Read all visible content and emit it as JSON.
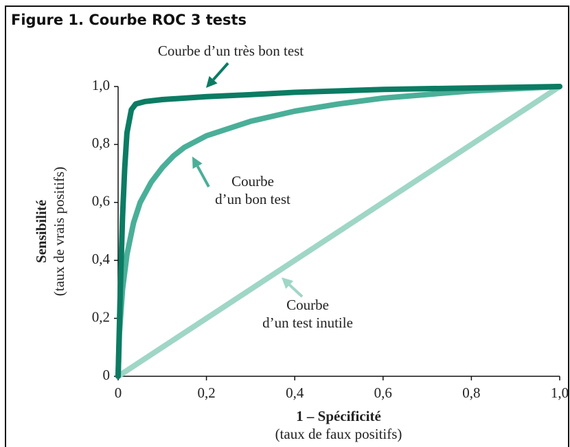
{
  "chart_data": {
    "type": "line",
    "title": "Figure 1.  Courbe ROC 3 tests",
    "xlabel": [
      "1 – Spécificité",
      "(taux de faux positifs)"
    ],
    "ylabel": [
      "Sensibilité",
      "(taux de vrais positifs)"
    ],
    "xlim": [
      0,
      1
    ],
    "ylim": [
      0,
      1
    ],
    "xticks": [
      0,
      {
        "value": 0.2,
        "label": "0,2"
      },
      {
        "value": 0.4,
        "label": "0,4"
      },
      {
        "value": 0.6,
        "label": "0,6"
      },
      {
        "value": 0.8,
        "label": "0,8"
      },
      {
        "value": 1,
        "label": "1,0"
      }
    ],
    "yticks": [
      0,
      {
        "value": 0.2,
        "label": "0,2"
      },
      {
        "value": 0.4,
        "label": "0,4"
      },
      {
        "value": 0.6,
        "label": "0,6"
      },
      {
        "value": 0.8,
        "label": "0,8"
      },
      {
        "value": 1,
        "label": "1,0"
      }
    ],
    "series": [
      {
        "color": "#0b7c63",
        "x": [
          0,
          0.005,
          0.01,
          0.015,
          0.02,
          0.03,
          0.04,
          0.06,
          0.1,
          0.2,
          0.3,
          0.4,
          0.6,
          0.8,
          1
        ],
        "values": [
          0,
          0.3,
          0.55,
          0.72,
          0.84,
          0.92,
          0.94,
          0.948,
          0.955,
          0.965,
          0.972,
          0.98,
          0.99,
          0.995,
          1
        ]
      },
      {
        "color": "#4aaf98",
        "x": [
          0,
          0.003,
          0.01,
          0.02,
          0.035,
          0.05,
          0.075,
          0.1,
          0.125,
          0.15,
          0.2,
          0.3,
          0.4,
          0.5,
          0.6,
          0.8,
          1
        ],
        "values": [
          0,
          0.15,
          0.3,
          0.42,
          0.53,
          0.6,
          0.67,
          0.72,
          0.76,
          0.79,
          0.83,
          0.88,
          0.915,
          0.94,
          0.96,
          0.985,
          1
        ]
      },
      {
        "color": "#9fd6c6",
        "x": [
          0,
          1
        ],
        "values": [
          0,
          1
        ]
      }
    ],
    "annotations": [
      [
        "Courbe d’un très bon test"
      ],
      [
        "Courbe",
        "d’un bon test"
      ],
      [
        "Courbe",
        "d’un test inutile"
      ]
    ]
  }
}
